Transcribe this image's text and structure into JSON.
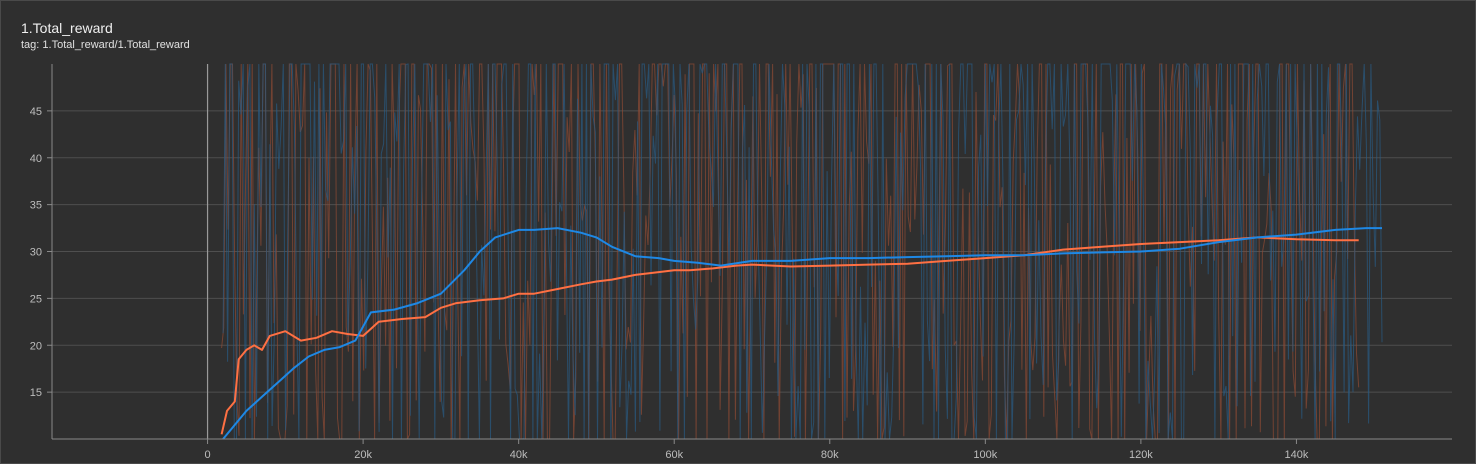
{
  "panel": {
    "title": "1.Total_reward",
    "tag": "tag: 1.Total_reward/1.Total_reward"
  },
  "colors": {
    "background": "#2f2f2f",
    "grid": "#4f4f4f",
    "axis": "#8a8a8a",
    "zero_line": "#9a9a9a",
    "series_orange": "#ff7043",
    "series_orange_raw": "#8a4a34",
    "series_blue": "#1e88e5",
    "series_blue_raw": "#2a5a80"
  },
  "chart_data": {
    "type": "line",
    "xlim": [
      -20000,
      160000
    ],
    "ylim": [
      10,
      50
    ],
    "x_ticks": [
      0,
      20000,
      40000,
      60000,
      80000,
      100000,
      120000,
      140000
    ],
    "x_tick_labels": [
      "0",
      "20k",
      "40k",
      "60k",
      "80k",
      "100k",
      "120k",
      "140k"
    ],
    "y_ticks": [
      15,
      20,
      25,
      30,
      35,
      40,
      45
    ],
    "y_tick_labels": [
      "15",
      "20",
      "25",
      "30",
      "35",
      "40",
      "45"
    ],
    "grid": true,
    "raw_range": [
      10,
      50
    ],
    "series": [
      {
        "color_key": "orange",
        "x": [
          1800,
          2500,
          3500,
          4000,
          5000,
          6000,
          7000,
          8000,
          10000,
          12000,
          14000,
          16000,
          18000,
          20000,
          22000,
          25000,
          28000,
          30000,
          32000,
          35000,
          38000,
          40000,
          42000,
          45000,
          48000,
          50000,
          52000,
          55000,
          58000,
          60000,
          62000,
          65000,
          68000,
          70000,
          75000,
          80000,
          85000,
          90000,
          95000,
          100000,
          105000,
          110000,
          115000,
          120000,
          125000,
          130000,
          135000,
          140000,
          145000,
          148000
        ],
        "y": [
          10.5,
          13.0,
          14.0,
          18.5,
          19.5,
          20.0,
          19.5,
          21.0,
          21.5,
          20.5,
          20.8,
          21.5,
          21.2,
          21.0,
          22.5,
          22.8,
          23.0,
          24.0,
          24.5,
          24.8,
          25.0,
          25.5,
          25.5,
          26.0,
          26.5,
          26.8,
          27.0,
          27.5,
          27.8,
          28.0,
          28.0,
          28.2,
          28.5,
          28.6,
          28.4,
          28.5,
          28.6,
          28.7,
          29.0,
          29.3,
          29.6,
          30.2,
          30.5,
          30.8,
          31.0,
          31.2,
          31.5,
          31.3,
          31.2,
          31.2
        ]
      },
      {
        "color_key": "blue",
        "x": [
          2000,
          3500,
          5000,
          7000,
          9000,
          11000,
          13000,
          15000,
          17000,
          19000,
          21000,
          24000,
          27000,
          30000,
          33000,
          35000,
          37000,
          40000,
          42000,
          45000,
          48000,
          50000,
          52000,
          55000,
          58000,
          60000,
          63000,
          66000,
          70000,
          75000,
          80000,
          85000,
          90000,
          95000,
          100000,
          105000,
          110000,
          115000,
          120000,
          125000,
          130000,
          135000,
          140000,
          145000,
          149000,
          151000
        ],
        "y": [
          10.0,
          11.5,
          13.0,
          14.5,
          16.0,
          17.5,
          18.8,
          19.5,
          19.8,
          20.5,
          23.5,
          23.8,
          24.5,
          25.5,
          28.0,
          30.0,
          31.5,
          32.3,
          32.3,
          32.5,
          32.0,
          31.5,
          30.5,
          29.5,
          29.3,
          29.0,
          28.8,
          28.5,
          29.0,
          29.0,
          29.3,
          29.3,
          29.4,
          29.5,
          29.6,
          29.6,
          29.8,
          29.9,
          30.0,
          30.3,
          31.0,
          31.5,
          31.8,
          32.3,
          32.5,
          32.5
        ]
      }
    ]
  }
}
